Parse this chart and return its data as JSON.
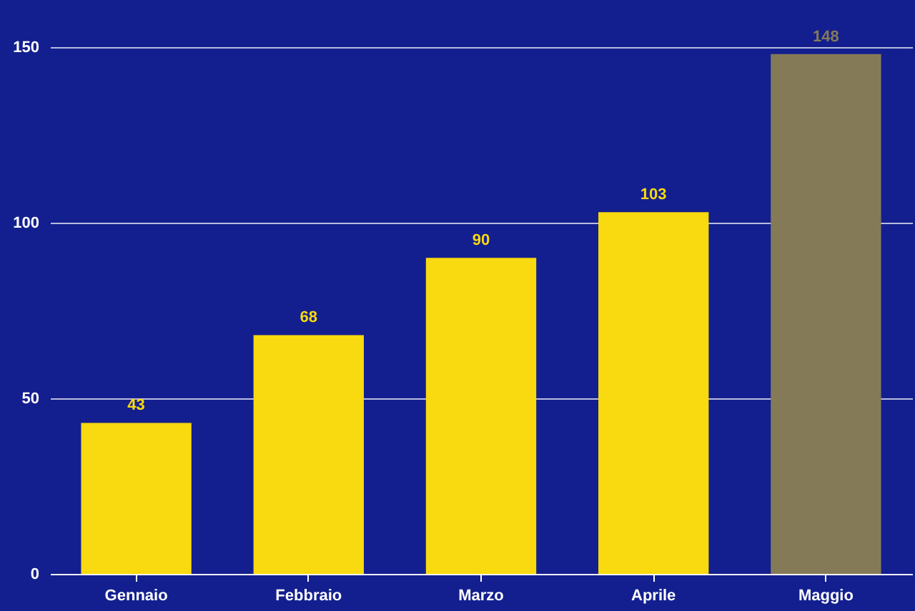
{
  "chart_data": {
    "type": "bar",
    "categories": [
      "Gennaio",
      "Febbraio",
      "Marzo",
      "Aprile",
      "Maggio"
    ],
    "values": [
      43,
      68,
      90,
      103,
      148
    ],
    "colors": [
      "#f9d90f",
      "#f9d90f",
      "#f9d90f",
      "#f9d90f",
      "#857a58"
    ],
    "ylim": [
      0,
      150
    ],
    "yticks": [
      0,
      50,
      100,
      150
    ],
    "grid": "y",
    "data_labels": true
  }
}
